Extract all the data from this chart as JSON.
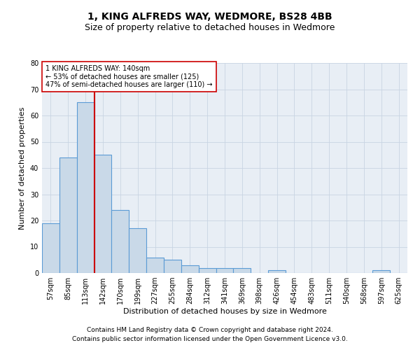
{
  "title": "1, KING ALFREDS WAY, WEDMORE, BS28 4BB",
  "subtitle": "Size of property relative to detached houses in Wedmore",
  "xlabel": "Distribution of detached houses by size in Wedmore",
  "ylabel": "Number of detached properties",
  "footnote1": "Contains HM Land Registry data © Crown copyright and database right 2024.",
  "footnote2": "Contains public sector information licensed under the Open Government Licence v3.0.",
  "categories": [
    "57sqm",
    "85sqm",
    "113sqm",
    "142sqm",
    "170sqm",
    "199sqm",
    "227sqm",
    "255sqm",
    "284sqm",
    "312sqm",
    "341sqm",
    "369sqm",
    "398sqm",
    "426sqm",
    "454sqm",
    "483sqm",
    "511sqm",
    "540sqm",
    "568sqm",
    "597sqm",
    "625sqm"
  ],
  "values": [
    19,
    44,
    65,
    45,
    24,
    17,
    6,
    5,
    3,
    2,
    2,
    2,
    0,
    1,
    0,
    0,
    0,
    0,
    0,
    1,
    0
  ],
  "bar_color": "#c9d9e8",
  "bar_edge_color": "#5b9bd5",
  "bar_edge_width": 0.8,
  "vline_x": 2.5,
  "vline_color": "#cc0000",
  "vline_lw": 1.5,
  "annotation_text": "1 KING ALFREDS WAY: 140sqm\n← 53% of detached houses are smaller (125)\n47% of semi-detached houses are larger (110) →",
  "annotation_box_color": "#ffffff",
  "annotation_box_edge": "#cc0000",
  "ylim": [
    0,
    80
  ],
  "yticks": [
    0,
    10,
    20,
    30,
    40,
    50,
    60,
    70,
    80
  ],
  "grid_color": "#c8d4e3",
  "plot_bg_color": "#e8eef5",
  "title_fontsize": 10,
  "subtitle_fontsize": 9,
  "axis_label_fontsize": 8,
  "tick_fontsize": 7,
  "annotation_fontsize": 7,
  "footnote_fontsize": 6.5
}
